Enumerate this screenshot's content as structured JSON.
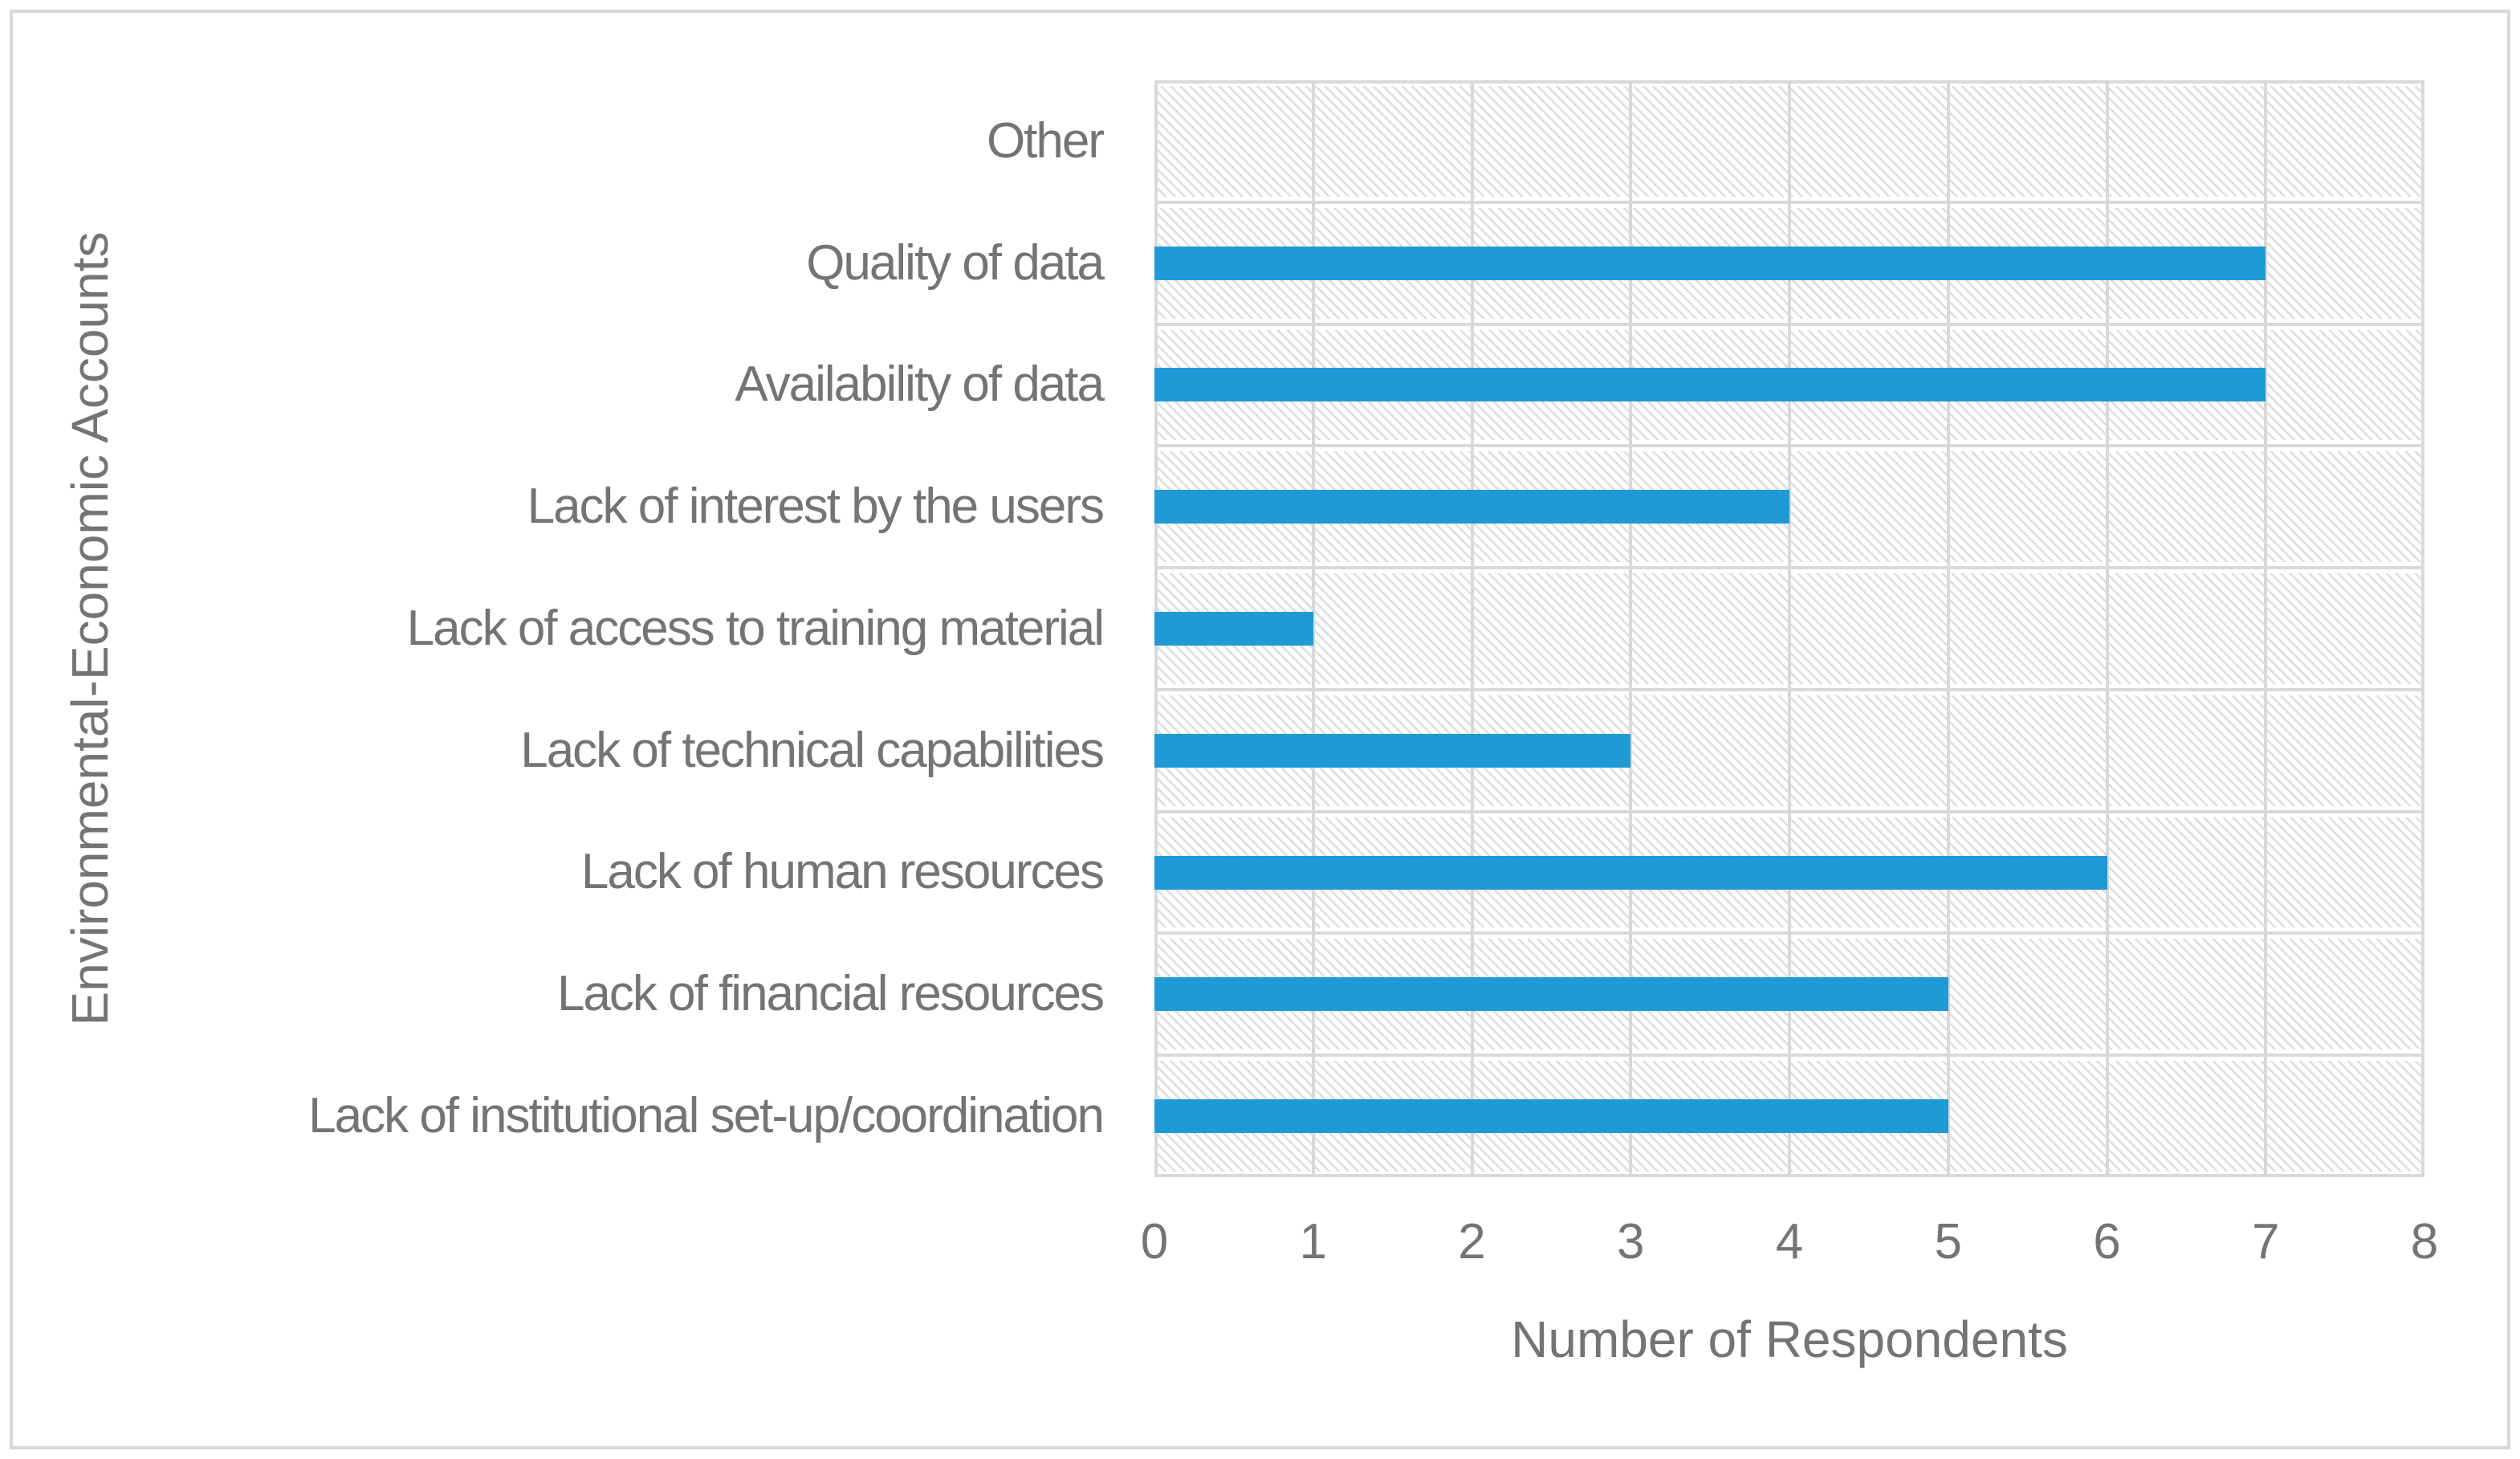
{
  "chart_data": {
    "type": "bar",
    "orientation": "horizontal",
    "categories": [
      "Other",
      "Quality of data",
      "Availability of data",
      "Lack of interest by the users",
      "Lack of access to training material",
      "Lack of technical capabilities",
      "Lack of human resources",
      "Lack of financial resources",
      "Lack of institutional set-up/coordination"
    ],
    "values": [
      0,
      7,
      7,
      4,
      1,
      3,
      6,
      5,
      5
    ],
    "title": "",
    "xlabel": "Number of Respondents",
    "ylabel": "Environmental-Economic Accounts",
    "xlim": [
      0,
      8
    ],
    "xticks": [
      0,
      1,
      2,
      3,
      4,
      5,
      6,
      7,
      8
    ],
    "grid": true,
    "legend": "none",
    "plot_background": "light diagonal hatch pattern",
    "colors": {
      "bar": "#1F9AD6",
      "gridline": "#D9D9D9",
      "hatch": "#DDDDDD",
      "text": "#747474",
      "figure_border": "#D8D8D8",
      "background": "#FFFFFF"
    }
  }
}
